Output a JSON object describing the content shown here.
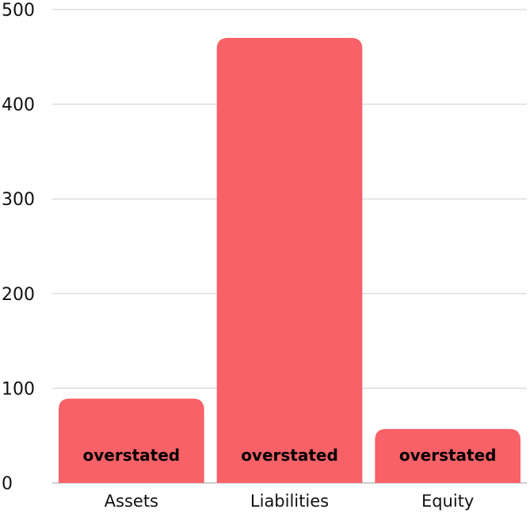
{
  "chart_data": {
    "type": "bar",
    "categories": [
      "Assets",
      "Liabilities",
      "Equity"
    ],
    "values": [
      89,
      470,
      57
    ],
    "data_labels": [
      "overstated",
      "overstated",
      "overstated"
    ],
    "yticks": [
      "0",
      "100",
      "200",
      "300",
      "400",
      "500"
    ],
    "ylim": [
      0,
      500
    ],
    "grid": true,
    "legend": "none",
    "bar_color": "#f76167"
  }
}
